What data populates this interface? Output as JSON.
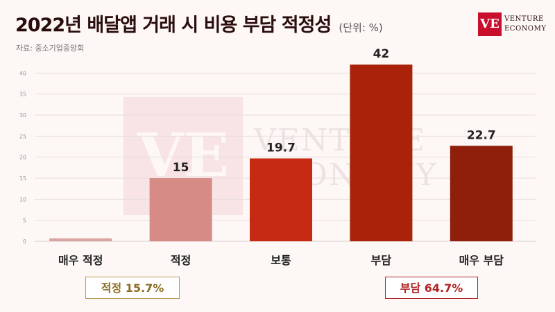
{
  "header": {
    "title": "2022년 배달앱 거래 시 비용 부담 적정성",
    "unit": "(단위: %)",
    "source": "자료: 중소기업중앙회"
  },
  "logo": {
    "mark": "VE",
    "line1": "VENTURE",
    "line2": "ECONOMY"
  },
  "watermark": {
    "mark": "VE",
    "line1": "VENTURE",
    "line2": "ECONOMY"
  },
  "summary": {
    "appropriate": "적정 15.7%",
    "burden": "부담 64.7%"
  },
  "chart_data": {
    "type": "bar",
    "categories": [
      "매우 적정",
      "적정",
      "보통",
      "부담",
      "매우 부담"
    ],
    "values": [
      0.7,
      15,
      19.7,
      42,
      22.7
    ],
    "value_labels": [
      "",
      "15",
      "19.7",
      "42",
      "22.7"
    ],
    "bar_colors": [
      "#d9a5a2",
      "#d68b87",
      "#c72a12",
      "#a92209",
      "#8f1e0b"
    ],
    "ylim": [
      0,
      45
    ],
    "yticks": [
      0,
      5,
      10,
      15,
      20,
      25,
      30,
      35,
      40
    ],
    "ytick_labels": [
      "0",
      "5",
      "10",
      "15",
      "20",
      "25",
      "30",
      "35",
      "40"
    ],
    "grid": true,
    "legend": "none"
  }
}
